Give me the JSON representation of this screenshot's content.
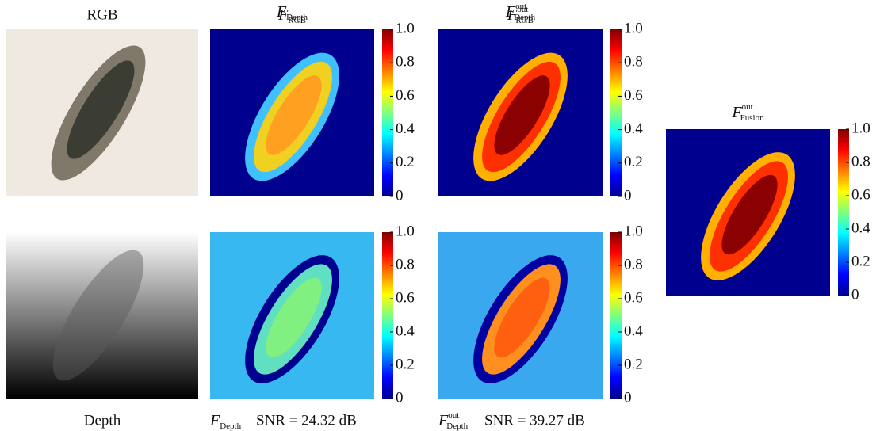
{
  "figure": {
    "colorbar": {
      "lim": [
        0,
        1
      ],
      "ticks": [
        0,
        0.2,
        0.4,
        0.6,
        0.8,
        {
          "value": 1,
          "label": "1.0"
        }
      ]
    },
    "panels": [
      {
        "kind": "rgb",
        "label": "RGB"
      },
      {
        "kind": "depth",
        "label": "Depth"
      },
      {
        "kind": "heatmap",
        "title": {
          "main": "F",
          "sub": "RGB"
        }
      },
      {
        "kind": "heatmap",
        "title": {
          "main": "F",
          "sub": "RGB",
          "sup": "out"
        }
      },
      {
        "kind": "heatmap",
        "title": {
          "main": "F",
          "sub": "Depth"
        },
        "caption": "SNR = 24.32 dB"
      },
      {
        "kind": "heatmap",
        "title": {
          "main": "F",
          "sub": "Depth",
          "sup": "out"
        },
        "caption": "SNR = 39.27 dB"
      },
      {
        "kind": "heatmap",
        "title": {
          "main": "F",
          "sub": "Fusion",
          "sup": "out"
        }
      }
    ]
  }
}
